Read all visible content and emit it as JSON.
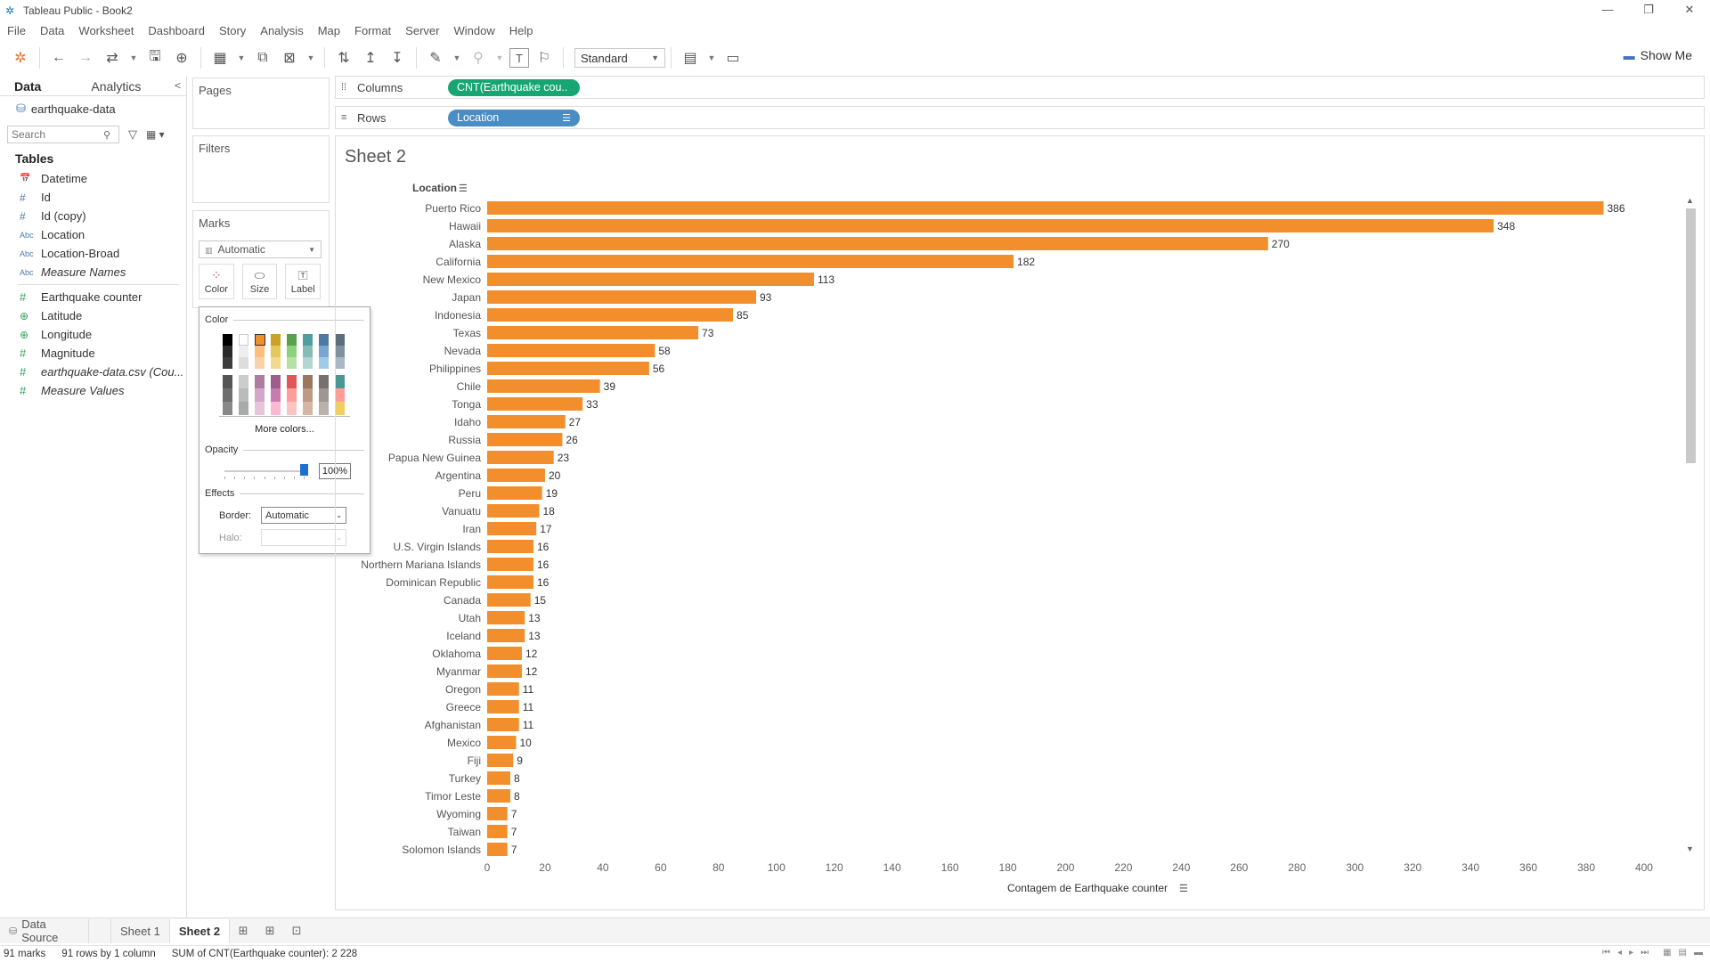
{
  "window": {
    "title": "Tableau Public - Book2"
  },
  "menu": [
    "File",
    "Data",
    "Worksheet",
    "Dashboard",
    "Story",
    "Analysis",
    "Map",
    "Format",
    "Server",
    "Window",
    "Help"
  ],
  "toolbar": {
    "fit": "Standard",
    "show_me": "Show Me"
  },
  "datapane": {
    "tabs": [
      "Data",
      "Analytics"
    ],
    "datasource": "earthquake-data",
    "search_placeholder": "Search",
    "tables_label": "Tables",
    "fields": [
      {
        "name": "Datetime",
        "type": "date",
        "italic": false
      },
      {
        "name": "Id",
        "type": "#",
        "italic": false
      },
      {
        "name": "Id (copy)",
        "type": "#",
        "italic": false
      },
      {
        "name": "Location",
        "type": "Abc",
        "italic": false
      },
      {
        "name": "Location-Broad",
        "type": "Abc",
        "italic": false
      },
      {
        "name": "Measure Names",
        "type": "Abc",
        "italic": true
      }
    ],
    "measures": [
      {
        "name": "Earthquake counter",
        "type": "#",
        "italic": false
      },
      {
        "name": "Latitude",
        "type": "geo",
        "italic": false
      },
      {
        "name": "Longitude",
        "type": "geo",
        "italic": false
      },
      {
        "name": "Magnitude",
        "type": "#",
        "italic": false
      },
      {
        "name": "earthquake-data.csv (Cou...",
        "type": "#",
        "italic": true
      },
      {
        "name": "Measure Values",
        "type": "#",
        "italic": true
      }
    ]
  },
  "cards": {
    "pages": "Pages",
    "filters": "Filters",
    "marks": "Marks",
    "mark_type": "Automatic",
    "buttons": [
      "Color",
      "Size",
      "Label"
    ]
  },
  "color_popup": {
    "color_label": "Color",
    "more_colors": "More colors...",
    "opacity_label": "Opacity",
    "opacity_value": "100%",
    "opacity_fraction": 1.0,
    "effects_label": "Effects",
    "border_label": "Border:",
    "border_value": "Automatic",
    "halo_label": "Halo:",
    "halo_value": ""
  },
  "shelves": {
    "columns_label": "Columns",
    "columns_pill": "CNT(Earthquake cou..",
    "rows_label": "Rows",
    "rows_pill": "Location"
  },
  "sheet_title": "Sheet 2",
  "chart_data": {
    "type": "bar",
    "orientation": "horizontal",
    "row_header": "Location",
    "xlabel": "Contagem de Earthquake counter",
    "xlim": [
      0,
      400
    ],
    "xticks": [
      0,
      20,
      40,
      60,
      80,
      100,
      120,
      140,
      160,
      180,
      200,
      220,
      240,
      260,
      280,
      300,
      320,
      340,
      360,
      380,
      400
    ],
    "bar_color": "#F28E2B",
    "categories": [
      "Puerto Rico",
      "Hawaii",
      "Alaska",
      "California",
      "New Mexico",
      "Japan",
      "Indonesia",
      "Texas",
      "Nevada",
      "Philippines",
      "Chile",
      "Tonga",
      "Idaho",
      "Russia",
      "Papua New Guinea",
      "Argentina",
      "Peru",
      "Vanuatu",
      "Iran",
      "U.S. Virgin Islands",
      "Northern Mariana Islands",
      "Dominican Republic",
      "Canada",
      "Utah",
      "Iceland",
      "Oklahoma",
      "Myanmar",
      "Oregon",
      "Greece",
      "Afghanistan",
      "Mexico",
      "Fiji",
      "Turkey",
      "Timor Leste",
      "Wyoming",
      "Taiwan",
      "Solomon Islands"
    ],
    "values": [
      386,
      348,
      270,
      182,
      113,
      93,
      85,
      73,
      58,
      56,
      39,
      33,
      27,
      26,
      23,
      20,
      19,
      18,
      17,
      16,
      16,
      16,
      15,
      13,
      13,
      12,
      12,
      11,
      11,
      11,
      10,
      9,
      8,
      8,
      7,
      7,
      7
    ]
  },
  "tabs": {
    "data_source": "Data Source",
    "sheets": [
      "Sheet 1",
      "Sheet 2"
    ],
    "active": "Sheet 2"
  },
  "status": {
    "marks": "91 marks",
    "rows_cols": "91 rows by 1 column",
    "sum": "SUM of CNT(Earthquake counter): 2 228"
  }
}
